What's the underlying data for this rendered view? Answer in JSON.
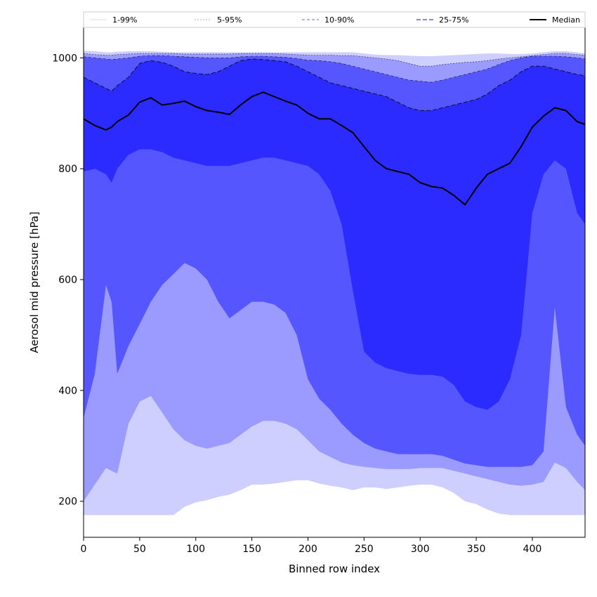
{
  "chart_data": {
    "type": "area",
    "title": "",
    "xlabel": "Binned row index",
    "ylabel": "Aerosol mid pressure [hPa]",
    "xlim": [
      0,
      447
    ],
    "ylim": [
      135,
      1055
    ],
    "x_ticks": [
      0,
      50,
      100,
      150,
      200,
      250,
      300,
      350,
      400
    ],
    "y_ticks": [
      200,
      400,
      600,
      800,
      1000
    ],
    "grid": false,
    "legend_position": "top",
    "legend": [
      "1-99%",
      "5-95%",
      "10-90%",
      "25-75%",
      "Median"
    ],
    "colors": {
      "band_1_99": "#ceceff",
      "band_5_95": "#9a9aff",
      "band_10_90": "#5656ff",
      "band_25_75": "#2b2bff",
      "median": "#000000"
    },
    "x": [
      0,
      10,
      20,
      25,
      30,
      40,
      50,
      60,
      70,
      80,
      90,
      100,
      110,
      120,
      130,
      140,
      150,
      160,
      170,
      180,
      190,
      200,
      210,
      220,
      230,
      240,
      250,
      260,
      270,
      280,
      290,
      300,
      310,
      320,
      330,
      340,
      350,
      360,
      370,
      380,
      390,
      400,
      410,
      420,
      430,
      440,
      447
    ],
    "series": [
      {
        "name": "Median",
        "values": [
          890,
          878,
          870,
          875,
          885,
          897,
          920,
          928,
          915,
          918,
          922,
          912,
          905,
          902,
          898,
          915,
          930,
          938,
          930,
          922,
          915,
          900,
          890,
          890,
          878,
          865,
          840,
          815,
          800,
          795,
          790,
          775,
          768,
          765,
          752,
          735,
          765,
          790,
          800,
          810,
          840,
          875,
          895,
          910,
          905,
          885,
          880
        ]
      }
    ],
    "bands": [
      {
        "name": "1-99%",
        "lower": [
          175,
          175,
          175,
          175,
          175,
          175,
          175,
          175,
          175,
          175,
          190,
          198,
          202,
          208,
          212,
          220,
          230,
          230,
          232,
          235,
          238,
          238,
          232,
          228,
          225,
          220,
          225,
          225,
          222,
          225,
          228,
          230,
          230,
          225,
          215,
          200,
          195,
          185,
          178,
          175,
          175,
          175,
          175,
          175,
          175,
          175,
          175
        ],
        "upper": [
          1013,
          1012,
          1010,
          1010,
          1011,
          1012,
          1012,
          1012,
          1011,
          1010,
          1010,
          1010,
          1010,
          1010,
          1010,
          1010,
          1010,
          1010,
          1010,
          1010,
          1010,
          1010,
          1010,
          1010,
          1010,
          1010,
          1008,
          1006,
          1005,
          1005,
          1004,
          1003,
          1003,
          1004,
          1005,
          1006,
          1007,
          1008,
          1008,
          1007,
          1007,
          1008,
          1010,
          1012,
          1012,
          1010,
          1008
        ]
      },
      {
        "name": "5-95%",
        "lower": [
          200,
          230,
          260,
          255,
          250,
          340,
          380,
          390,
          360,
          330,
          310,
          300,
          295,
          300,
          305,
          320,
          335,
          345,
          345,
          340,
          330,
          310,
          290,
          280,
          270,
          265,
          262,
          260,
          258,
          258,
          258,
          260,
          260,
          260,
          255,
          250,
          245,
          240,
          235,
          230,
          228,
          230,
          235,
          270,
          260,
          235,
          220
        ],
        "upper": [
          1008,
          1006,
          1005,
          1005,
          1006,
          1007,
          1008,
          1008,
          1008,
          1008,
          1007,
          1007,
          1007,
          1007,
          1007,
          1008,
          1008,
          1008,
          1008,
          1007,
          1006,
          1005,
          1005,
          1005,
          1004,
          1004,
          1002,
          1000,
          998,
          995,
          990,
          985,
          985,
          988,
          990,
          992,
          993,
          995,
          998,
          1000,
          1002,
          1004,
          1006,
          1008,
          1008,
          1006,
          1005
        ]
      },
      {
        "name": "10-90%",
        "lower": [
          350,
          430,
          590,
          560,
          430,
          480,
          520,
          560,
          590,
          610,
          630,
          620,
          600,
          560,
          530,
          545,
          560,
          560,
          555,
          540,
          500,
          420,
          385,
          365,
          340,
          320,
          305,
          295,
          290,
          285,
          285,
          285,
          285,
          282,
          275,
          268,
          265,
          262,
          262,
          262,
          262,
          265,
          290,
          550,
          370,
          320,
          300
        ],
        "upper": [
          1002,
          1000,
          998,
          997,
          998,
          1000,
          1003,
          1004,
          1004,
          1003,
          1002,
          1001,
          1000,
          1000,
          1000,
          1002,
          1003,
          1003,
          1002,
          1001,
          999,
          996,
          995,
          993,
          990,
          985,
          980,
          975,
          970,
          965,
          960,
          958,
          956,
          960,
          965,
          970,
          975,
          980,
          988,
          995,
          1000,
          1003,
          1003,
          1003,
          1002,
          1000,
          998
        ]
      },
      {
        "name": "25-75%",
        "lower": [
          795,
          800,
          790,
          775,
          800,
          825,
          835,
          835,
          830,
          820,
          815,
          810,
          805,
          805,
          805,
          810,
          815,
          820,
          820,
          815,
          810,
          805,
          790,
          760,
          700,
          580,
          470,
          450,
          440,
          435,
          430,
          428,
          428,
          425,
          410,
          380,
          370,
          365,
          380,
          420,
          500,
          720,
          790,
          815,
          800,
          720,
          700
        ],
        "upper": [
          965,
          955,
          945,
          940,
          950,
          965,
          990,
          995,
          992,
          985,
          975,
          972,
          970,
          975,
          985,
          995,
          998,
          997,
          995,
          993,
          985,
          975,
          965,
          955,
          950,
          945,
          940,
          935,
          930,
          920,
          910,
          905,
          905,
          910,
          915,
          920,
          925,
          935,
          950,
          960,
          975,
          985,
          985,
          980,
          975,
          970,
          968
        ]
      }
    ]
  }
}
